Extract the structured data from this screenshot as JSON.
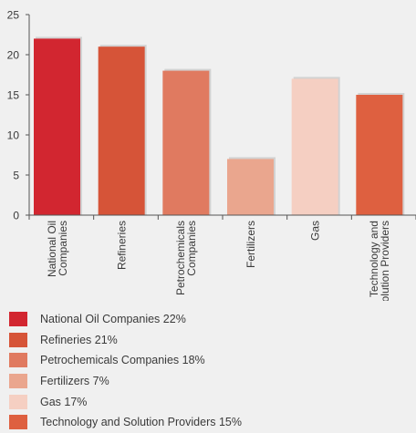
{
  "chart_data": {
    "type": "bar",
    "categories": [
      [
        "National Oil",
        "Companies"
      ],
      [
        "Refineries"
      ],
      [
        "Petrochemicals",
        "Companies"
      ],
      [
        "Fertilizers"
      ],
      [
        "Gas"
      ],
      [
        "Technology and",
        "Solution Providers"
      ]
    ],
    "values": [
      22,
      21,
      18,
      7,
      17,
      15
    ],
    "colors": [
      "#d22630",
      "#d65438",
      "#e07a60",
      "#eaa68e",
      "#f5cfc2",
      "#de6040"
    ],
    "yticks": [
      0,
      5,
      10,
      15,
      20,
      25
    ],
    "ylim": [
      0,
      25
    ],
    "grid": false,
    "title": "",
    "xlabel": "",
    "ylabel": ""
  },
  "legend": [
    {
      "label": "National Oil Companies 22%",
      "color": "#d22630"
    },
    {
      "label": "Refineries 21%",
      "color": "#d65438"
    },
    {
      "label": "Petrochemicals Companies 18%",
      "color": "#e07a60"
    },
    {
      "label": "Fertilizers 7%",
      "color": "#eaa68e"
    },
    {
      "label": "Gas 17%",
      "color": "#f5cfc2"
    },
    {
      "label": "Technology and Solution Providers 15%",
      "color": "#de6040"
    }
  ]
}
